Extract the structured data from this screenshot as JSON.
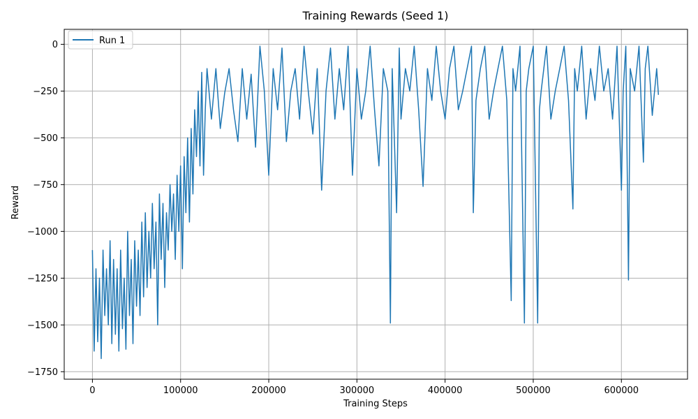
{
  "chart_data": {
    "type": "line",
    "title": "Training Rewards (Seed 1)",
    "xlabel": "Training Steps",
    "ylabel": "Reward",
    "xlim": [
      -32000,
      675000
    ],
    "ylim": [
      -1790,
      80
    ],
    "xticks": [
      0,
      100000,
      200000,
      300000,
      400000,
      500000,
      600000
    ],
    "xtick_labels": [
      "0",
      "100000",
      "200000",
      "300000",
      "400000",
      "500000",
      "600000"
    ],
    "yticks": [
      0,
      -250,
      -500,
      -750,
      -1000,
      -1250,
      -1500,
      -1750
    ],
    "ytick_labels": [
      "0",
      "−250",
      "−500",
      "−750",
      "−1000",
      "−1250",
      "−1500",
      "−1750"
    ],
    "grid": true,
    "legend_position": "top-left",
    "series": [
      {
        "name": "Run 1",
        "color": "#1f77b4",
        "x": [
          0,
          2000,
          4000,
          6000,
          8000,
          10000,
          12000,
          14000,
          16000,
          18000,
          20000,
          22000,
          24000,
          26000,
          28000,
          30000,
          32000,
          34000,
          36000,
          38000,
          40000,
          42000,
          44000,
          46000,
          48000,
          50000,
          52000,
          54000,
          56000,
          58000,
          60000,
          62000,
          64000,
          66000,
          68000,
          70000,
          72000,
          74000,
          76000,
          78000,
          80000,
          82000,
          84000,
          86000,
          88000,
          90000,
          92000,
          94000,
          96000,
          98000,
          100000,
          102000,
          104000,
          106000,
          108000,
          110000,
          112000,
          114000,
          116000,
          118000,
          120000,
          122000,
          124000,
          126000,
          128000,
          130000,
          135000,
          140000,
          145000,
          150000,
          155000,
          160000,
          165000,
          170000,
          175000,
          180000,
          185000,
          190000,
          195000,
          200000,
          205000,
          210000,
          215000,
          220000,
          225000,
          230000,
          235000,
          240000,
          245000,
          250000,
          255000,
          260000,
          265000,
          270000,
          275000,
          280000,
          285000,
          290000,
          295000,
          300000,
          305000,
          310000,
          315000,
          320000,
          325000,
          330000,
          335000,
          338000,
          340000,
          345000,
          348000,
          350000,
          355000,
          360000,
          365000,
          370000,
          375000,
          380000,
          385000,
          390000,
          395000,
          400000,
          405000,
          410000,
          415000,
          420000,
          425000,
          430000,
          432000,
          435000,
          440000,
          445000,
          450000,
          455000,
          460000,
          465000,
          470000,
          475000,
          477000,
          480000,
          485000,
          490000,
          492000,
          495000,
          500000,
          505000,
          507000,
          509000,
          512000,
          515000,
          520000,
          525000,
          530000,
          535000,
          540000,
          545000,
          547000,
          550000,
          555000,
          560000,
          565000,
          570000,
          575000,
          580000,
          585000,
          590000,
          595000,
          600000,
          602000,
          605000,
          608000,
          610000,
          615000,
          620000,
          625000,
          627000,
          630000,
          635000,
          640000,
          642000
        ],
        "values": [
          -1100,
          -1640,
          -1200,
          -1590,
          -1250,
          -1680,
          -1100,
          -1450,
          -1200,
          -1500,
          -1050,
          -1600,
          -1150,
          -1550,
          -1200,
          -1640,
          -1100,
          -1520,
          -1250,
          -1630,
          -1000,
          -1450,
          -1150,
          -1600,
          -1050,
          -1400,
          -1100,
          -1450,
          -950,
          -1350,
          -900,
          -1300,
          -1000,
          -1250,
          -850,
          -1200,
          -950,
          -1500,
          -800,
          -1150,
          -850,
          -1300,
          -900,
          -1100,
          -750,
          -1000,
          -800,
          -1150,
          -700,
          -1000,
          -650,
          -1200,
          -600,
          -900,
          -500,
          -950,
          -450,
          -800,
          -350,
          -600,
          -250,
          -650,
          -150,
          -700,
          -350,
          -130,
          -400,
          -130,
          -450,
          -260,
          -130,
          -350,
          -520,
          -130,
          -400,
          -160,
          -550,
          -10,
          -250,
          -700,
          -130,
          -350,
          -20,
          -520,
          -250,
          -130,
          -400,
          -10,
          -260,
          -480,
          -130,
          -780,
          -250,
          -20,
          -400,
          -130,
          -350,
          -10,
          -700,
          -130,
          -400,
          -250,
          -10,
          -350,
          -650,
          -130,
          -250,
          -1490,
          -130,
          -900,
          -20,
          -400,
          -130,
          -250,
          -10,
          -350,
          -760,
          -130,
          -300,
          -10,
          -250,
          -400,
          -130,
          -10,
          -350,
          -250,
          -130,
          -10,
          -900,
          -300,
          -130,
          -10,
          -400,
          -250,
          -130,
          -10,
          -300,
          -1370,
          -130,
          -250,
          -10,
          -1490,
          -250,
          -130,
          -10,
          -1490,
          -350,
          -250,
          -130,
          -10,
          -400,
          -250,
          -130,
          -10,
          -300,
          -880,
          -130,
          -250,
          -10,
          -400,
          -130,
          -300,
          -10,
          -250,
          -130,
          -400,
          -10,
          -780,
          -250,
          -10,
          -1260,
          -130,
          -250,
          -10,
          -630,
          -130,
          -10,
          -380,
          -130,
          -270
        ]
      }
    ]
  }
}
